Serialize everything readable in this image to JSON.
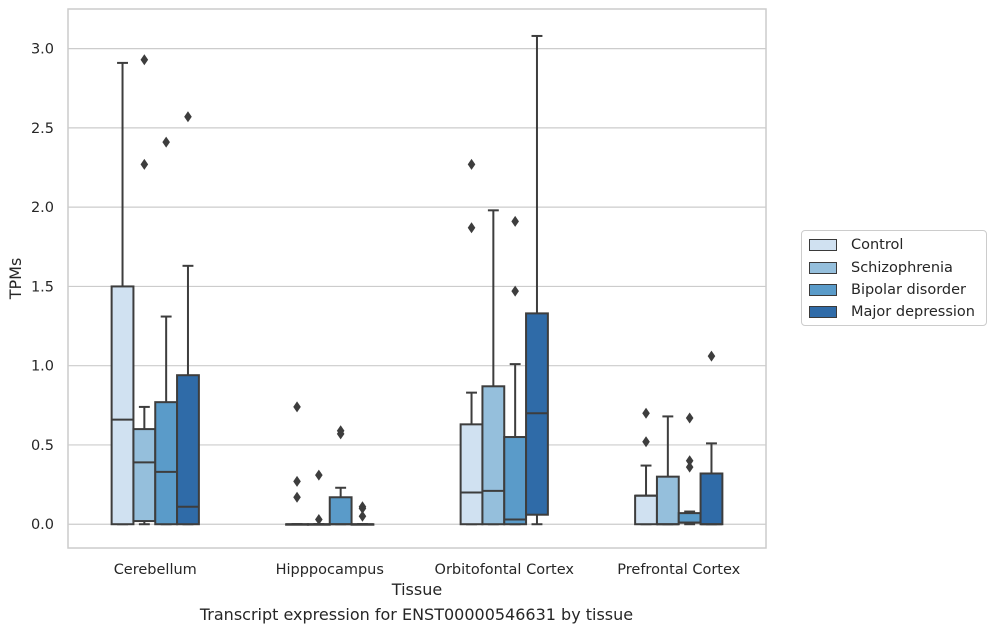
{
  "chart_data": {
    "type": "box",
    "xlabel": "Tissue",
    "ylabel": "TPMs",
    "ylim": [
      -0.15,
      3.25
    ],
    "yticks": [
      "0.0",
      "0.5",
      "1.0",
      "1.5",
      "2.0",
      "2.5",
      "3.0"
    ],
    "grid": "horizontal",
    "legend_position": "right",
    "categories": [
      "Cerebellum",
      "Hipppocampus",
      "Orbitofontal Cortex",
      "Prefrontal Cortex"
    ],
    "series": [
      {
        "name": "Control",
        "color": "#d0e1f1",
        "boxes": [
          {
            "whislo": 0.0,
            "q1": 0.0,
            "med": 0.66,
            "q3": 1.5,
            "whishi": 2.91,
            "fliers": []
          },
          {
            "whislo": 0.0,
            "q1": 0.0,
            "med": 0.0,
            "q3": 0.0,
            "whishi": 0.0,
            "fliers": [
              0.74,
              0.27,
              0.17
            ]
          },
          {
            "whislo": 0.0,
            "q1": 0.0,
            "med": 0.2,
            "q3": 0.63,
            "whishi": 0.83,
            "fliers": [
              2.27,
              1.87
            ]
          },
          {
            "whislo": 0.0,
            "q1": 0.0,
            "med": 0.18,
            "q3": 0.18,
            "whishi": 0.37,
            "fliers": [
              0.7,
              0.52
            ]
          }
        ]
      },
      {
        "name": "Schizophrenia",
        "color": "#95bfdc",
        "boxes": [
          {
            "whislo": 0.0,
            "q1": 0.02,
            "med": 0.39,
            "q3": 0.6,
            "whishi": 0.74,
            "fliers": [
              2.93,
              2.27
            ]
          },
          {
            "whislo": 0.0,
            "q1": 0.0,
            "med": 0.0,
            "q3": 0.0,
            "whishi": 0.0,
            "fliers": [
              0.31,
              0.03
            ]
          },
          {
            "whislo": 0.0,
            "q1": 0.0,
            "med": 0.21,
            "q3": 0.87,
            "whishi": 1.98,
            "fliers": []
          },
          {
            "whislo": 0.0,
            "q1": 0.0,
            "med": 0.0,
            "q3": 0.3,
            "whishi": 0.68,
            "fliers": []
          }
        ]
      },
      {
        "name": "Bipolar disorder",
        "color": "#5a9bc9",
        "boxes": [
          {
            "whislo": 0.0,
            "q1": 0.0,
            "med": 0.33,
            "q3": 0.77,
            "whishi": 1.31,
            "fliers": [
              2.41
            ]
          },
          {
            "whislo": 0.0,
            "q1": 0.0,
            "med": 0.0,
            "q3": 0.17,
            "whishi": 0.23,
            "fliers": [
              0.59,
              0.57
            ]
          },
          {
            "whislo": 0.0,
            "q1": 0.0,
            "med": 0.03,
            "q3": 0.55,
            "whishi": 1.01,
            "fliers": [
              1.91,
              1.47
            ]
          },
          {
            "whislo": 0.0,
            "q1": 0.01,
            "med": 0.01,
            "q3": 0.07,
            "whishi": 0.08,
            "fliers": [
              0.67,
              0.4,
              0.36
            ]
          }
        ]
      },
      {
        "name": "Major depression",
        "color": "#2f6ba8",
        "boxes": [
          {
            "whislo": 0.0,
            "q1": 0.0,
            "med": 0.11,
            "q3": 0.94,
            "whishi": 1.63,
            "fliers": [
              2.57
            ]
          },
          {
            "whislo": 0.0,
            "q1": 0.0,
            "med": 0.0,
            "q3": 0.0,
            "whishi": 0.0,
            "fliers": [
              0.11,
              0.1,
              0.05
            ]
          },
          {
            "whislo": 0.0,
            "q1": 0.06,
            "med": 0.7,
            "q3": 1.33,
            "whishi": 3.08,
            "fliers": []
          },
          {
            "whislo": 0.0,
            "q1": 0.0,
            "med": 0.0,
            "q3": 0.32,
            "whishi": 0.51,
            "fliers": [
              1.06
            ]
          }
        ]
      }
    ]
  },
  "caption": "Transcript expression for ENST00000546631 by tissue"
}
